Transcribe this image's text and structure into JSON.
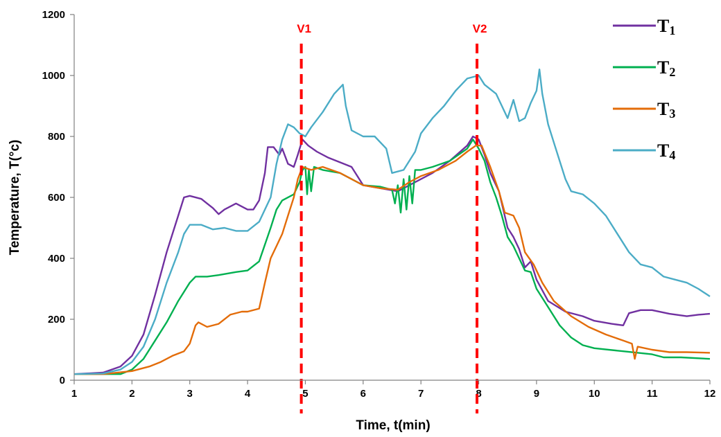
{
  "chart_data": {
    "type": "line",
    "title": "",
    "xlabel": "Time, t(min)",
    "ylabel": "Temperature, T(°c)",
    "xlim": [
      1,
      12
    ],
    "ylim": [
      0,
      1200
    ],
    "xticks": [
      "1",
      "2",
      "3",
      "4",
      "5",
      "6",
      "7",
      "8",
      "9",
      "10",
      "11",
      "12"
    ],
    "yticks": [
      "0",
      "200",
      "400",
      "600",
      "800",
      "1000",
      "1200"
    ],
    "grid": false,
    "legend_position": "top-right",
    "vertical_markers": [
      {
        "label": "V1",
        "x": 4.93,
        "color": "#ff0000"
      },
      {
        "label": "V2",
        "x": 7.97,
        "color": "#ff0000"
      }
    ],
    "series": [
      {
        "name": "T",
        "subscript": "1",
        "color": "#7030a0",
        "points": [
          [
            1.0,
            20
          ],
          [
            1.5,
            25
          ],
          [
            1.8,
            45
          ],
          [
            2.0,
            80
          ],
          [
            2.2,
            150
          ],
          [
            2.4,
            280
          ],
          [
            2.6,
            420
          ],
          [
            2.8,
            540
          ],
          [
            2.9,
            600
          ],
          [
            3.0,
            605
          ],
          [
            3.2,
            595
          ],
          [
            3.3,
            580
          ],
          [
            3.4,
            565
          ],
          [
            3.5,
            545
          ],
          [
            3.6,
            560
          ],
          [
            3.8,
            580
          ],
          [
            4.0,
            560
          ],
          [
            4.1,
            560
          ],
          [
            4.2,
            590
          ],
          [
            4.3,
            680
          ],
          [
            4.35,
            765
          ],
          [
            4.45,
            765
          ],
          [
            4.55,
            740
          ],
          [
            4.6,
            760
          ],
          [
            4.7,
            710
          ],
          [
            4.8,
            700
          ],
          [
            4.87,
            740
          ],
          [
            4.95,
            790
          ],
          [
            5.05,
            770
          ],
          [
            5.2,
            750
          ],
          [
            5.4,
            730
          ],
          [
            5.6,
            715
          ],
          [
            5.8,
            700
          ],
          [
            6.0,
            640
          ],
          [
            6.3,
            630
          ],
          [
            6.6,
            620
          ],
          [
            6.8,
            640
          ],
          [
            7.0,
            660
          ],
          [
            7.2,
            680
          ],
          [
            7.5,
            720
          ],
          [
            7.8,
            770
          ],
          [
            7.9,
            800
          ],
          [
            8.0,
            790
          ],
          [
            8.1,
            740
          ],
          [
            8.2,
            680
          ],
          [
            8.35,
            620
          ],
          [
            8.5,
            500
          ],
          [
            8.6,
            470
          ],
          [
            8.7,
            430
          ],
          [
            8.8,
            370
          ],
          [
            8.9,
            390
          ],
          [
            9.0,
            330
          ],
          [
            9.2,
            260
          ],
          [
            9.5,
            225
          ],
          [
            9.8,
            210
          ],
          [
            10.0,
            195
          ],
          [
            10.3,
            185
          ],
          [
            10.5,
            180
          ],
          [
            10.6,
            220
          ],
          [
            10.8,
            230
          ],
          [
            11.0,
            230
          ],
          [
            11.3,
            218
          ],
          [
            11.6,
            210
          ],
          [
            11.8,
            215
          ],
          [
            12.0,
            218
          ]
        ]
      },
      {
        "name": "T",
        "subscript": "2",
        "color": "#00b050",
        "points": [
          [
            1.0,
            20
          ],
          [
            1.5,
            20
          ],
          [
            1.8,
            20
          ],
          [
            2.0,
            35
          ],
          [
            2.2,
            70
          ],
          [
            2.4,
            130
          ],
          [
            2.6,
            190
          ],
          [
            2.8,
            260
          ],
          [
            3.0,
            320
          ],
          [
            3.1,
            340
          ],
          [
            3.3,
            340
          ],
          [
            3.5,
            345
          ],
          [
            3.8,
            355
          ],
          [
            4.0,
            360
          ],
          [
            4.2,
            390
          ],
          [
            4.4,
            500
          ],
          [
            4.5,
            560
          ],
          [
            4.6,
            590
          ],
          [
            4.8,
            610
          ],
          [
            4.9,
            650
          ],
          [
            4.95,
            690
          ],
          [
            5.0,
            700
          ],
          [
            5.03,
            610
          ],
          [
            5.06,
            690
          ],
          [
            5.1,
            620
          ],
          [
            5.15,
            700
          ],
          [
            5.3,
            690
          ],
          [
            5.6,
            680
          ],
          [
            5.8,
            660
          ],
          [
            6.0,
            640
          ],
          [
            6.3,
            635
          ],
          [
            6.5,
            625
          ],
          [
            6.55,
            580
          ],
          [
            6.6,
            640
          ],
          [
            6.65,
            550
          ],
          [
            6.7,
            660
          ],
          [
            6.75,
            560
          ],
          [
            6.8,
            670
          ],
          [
            6.85,
            580
          ],
          [
            6.9,
            690
          ],
          [
            7.0,
            690
          ],
          [
            7.2,
            700
          ],
          [
            7.5,
            720
          ],
          [
            7.8,
            760
          ],
          [
            7.9,
            790
          ],
          [
            8.0,
            760
          ],
          [
            8.1,
            720
          ],
          [
            8.2,
            650
          ],
          [
            8.3,
            600
          ],
          [
            8.4,
            540
          ],
          [
            8.5,
            470
          ],
          [
            8.6,
            440
          ],
          [
            8.7,
            400
          ],
          [
            8.8,
            360
          ],
          [
            8.9,
            355
          ],
          [
            9.0,
            300
          ],
          [
            9.2,
            240
          ],
          [
            9.4,
            180
          ],
          [
            9.6,
            140
          ],
          [
            9.8,
            115
          ],
          [
            10.0,
            105
          ],
          [
            10.5,
            95
          ],
          [
            11.0,
            85
          ],
          [
            11.2,
            75
          ],
          [
            11.5,
            75
          ],
          [
            12.0,
            70
          ]
        ]
      },
      {
        "name": "T",
        "subscript": "3",
        "color": "#e36c09",
        "points": [
          [
            1.0,
            20
          ],
          [
            1.5,
            20
          ],
          [
            2.0,
            30
          ],
          [
            2.3,
            45
          ],
          [
            2.5,
            60
          ],
          [
            2.7,
            80
          ],
          [
            2.9,
            95
          ],
          [
            3.0,
            120
          ],
          [
            3.1,
            180
          ],
          [
            3.15,
            190
          ],
          [
            3.3,
            175
          ],
          [
            3.5,
            185
          ],
          [
            3.7,
            215
          ],
          [
            3.9,
            225
          ],
          [
            4.0,
            225
          ],
          [
            4.2,
            235
          ],
          [
            4.3,
            320
          ],
          [
            4.4,
            400
          ],
          [
            4.5,
            440
          ],
          [
            4.6,
            480
          ],
          [
            4.7,
            540
          ],
          [
            4.8,
            600
          ],
          [
            4.87,
            660
          ],
          [
            4.95,
            700
          ],
          [
            5.1,
            690
          ],
          [
            5.3,
            700
          ],
          [
            5.6,
            680
          ],
          [
            5.8,
            660
          ],
          [
            6.0,
            640
          ],
          [
            6.3,
            630
          ],
          [
            6.6,
            625
          ],
          [
            6.8,
            650
          ],
          [
            7.0,
            670
          ],
          [
            7.3,
            690
          ],
          [
            7.6,
            720
          ],
          [
            7.8,
            750
          ],
          [
            7.95,
            770
          ],
          [
            8.05,
            770
          ],
          [
            8.2,
            700
          ],
          [
            8.35,
            620
          ],
          [
            8.45,
            550
          ],
          [
            8.6,
            540
          ],
          [
            8.7,
            500
          ],
          [
            8.8,
            420
          ],
          [
            8.95,
            380
          ],
          [
            9.1,
            320
          ],
          [
            9.3,
            260
          ],
          [
            9.6,
            210
          ],
          [
            9.9,
            175
          ],
          [
            10.2,
            150
          ],
          [
            10.5,
            130
          ],
          [
            10.65,
            120
          ],
          [
            10.7,
            70
          ],
          [
            10.75,
            110
          ],
          [
            11.0,
            100
          ],
          [
            11.3,
            92
          ],
          [
            11.6,
            92
          ],
          [
            12.0,
            90
          ]
        ]
      },
      {
        "name": "T",
        "subscript": "4",
        "color": "#4bacc6",
        "points": [
          [
            1.0,
            20
          ],
          [
            1.5,
            22
          ],
          [
            1.8,
            35
          ],
          [
            2.0,
            60
          ],
          [
            2.2,
            110
          ],
          [
            2.4,
            200
          ],
          [
            2.6,
            320
          ],
          [
            2.8,
            420
          ],
          [
            2.9,
            480
          ],
          [
            3.0,
            510
          ],
          [
            3.2,
            510
          ],
          [
            3.4,
            495
          ],
          [
            3.6,
            500
          ],
          [
            3.8,
            490
          ],
          [
            4.0,
            490
          ],
          [
            4.2,
            520
          ],
          [
            4.4,
            600
          ],
          [
            4.5,
            710
          ],
          [
            4.6,
            790
          ],
          [
            4.7,
            840
          ],
          [
            4.8,
            830
          ],
          [
            4.9,
            810
          ],
          [
            5.0,
            800
          ],
          [
            5.1,
            830
          ],
          [
            5.3,
            880
          ],
          [
            5.5,
            940
          ],
          [
            5.65,
            970
          ],
          [
            5.7,
            900
          ],
          [
            5.8,
            820
          ],
          [
            6.0,
            800
          ],
          [
            6.2,
            800
          ],
          [
            6.4,
            760
          ],
          [
            6.5,
            680
          ],
          [
            6.7,
            690
          ],
          [
            6.9,
            750
          ],
          [
            7.0,
            810
          ],
          [
            7.2,
            860
          ],
          [
            7.4,
            900
          ],
          [
            7.6,
            950
          ],
          [
            7.8,
            990
          ],
          [
            8.0,
            1000
          ],
          [
            8.1,
            970
          ],
          [
            8.3,
            940
          ],
          [
            8.4,
            900
          ],
          [
            8.5,
            860
          ],
          [
            8.6,
            920
          ],
          [
            8.7,
            850
          ],
          [
            8.8,
            860
          ],
          [
            8.9,
            910
          ],
          [
            9.0,
            950
          ],
          [
            9.05,
            1020
          ],
          [
            9.1,
            940
          ],
          [
            9.2,
            840
          ],
          [
            9.3,
            780
          ],
          [
            9.5,
            660
          ],
          [
            9.6,
            620
          ],
          [
            9.8,
            610
          ],
          [
            10.0,
            580
          ],
          [
            10.2,
            540
          ],
          [
            10.4,
            480
          ],
          [
            10.6,
            420
          ],
          [
            10.8,
            380
          ],
          [
            11.0,
            370
          ],
          [
            11.2,
            340
          ],
          [
            11.4,
            330
          ],
          [
            11.6,
            320
          ],
          [
            11.8,
            300
          ],
          [
            12.0,
            275
          ]
        ]
      }
    ]
  }
}
